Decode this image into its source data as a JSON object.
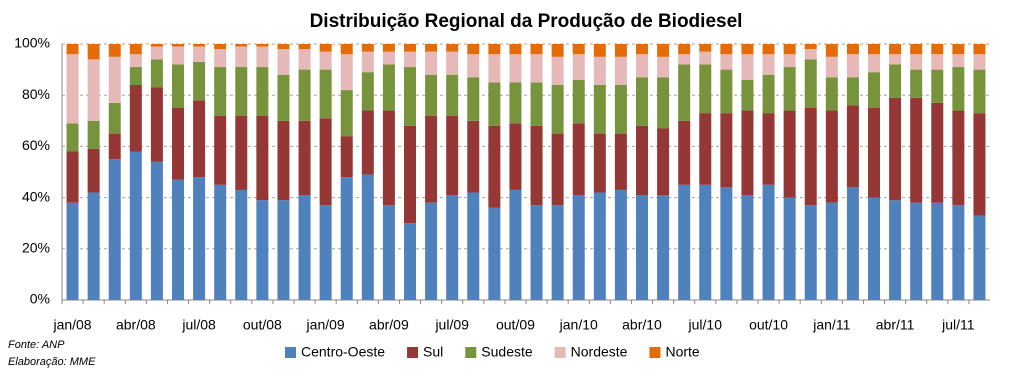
{
  "chart_data": {
    "type": "stacked_bar",
    "title": "Distribuição Regional da Produção de Biodiesel",
    "categories": [
      "jan/08",
      null,
      null,
      "abr/08",
      null,
      null,
      "jul/08",
      null,
      null,
      "out/08",
      null,
      null,
      "jan/09",
      null,
      null,
      "abr/09",
      null,
      null,
      "jul/09",
      null,
      null,
      "out/09",
      null,
      null,
      "jan/10",
      null,
      null,
      "abr/10",
      null,
      null,
      "jul/10",
      null,
      null,
      "out/10",
      null,
      null,
      "jan/11",
      null,
      null,
      "abr/11",
      null,
      null,
      "jul/11",
      null
    ],
    "series": [
      {
        "name": "Centro-Oeste",
        "color": "#4f81bd",
        "values": [
          38,
          42,
          55,
          58,
          54,
          47,
          48,
          45,
          43,
          39,
          39,
          41,
          37,
          48,
          49,
          37,
          30,
          38,
          41,
          42,
          36,
          43,
          37,
          37,
          41,
          42,
          43,
          41,
          41,
          45,
          45,
          44,
          41,
          45,
          40,
          37,
          38,
          44,
          40,
          39,
          38,
          38,
          37,
          33
        ]
      },
      {
        "name": "Sul",
        "color": "#953735",
        "values": [
          20,
          17,
          10,
          26,
          29,
          28,
          30,
          27,
          29,
          33,
          31,
          29,
          34,
          16,
          25,
          37,
          38,
          34,
          31,
          28,
          32,
          26,
          31,
          28,
          28,
          23,
          22,
          27,
          26,
          25,
          28,
          29,
          33,
          28,
          34,
          38,
          36,
          32,
          35,
          40,
          41,
          39,
          37,
          40
        ]
      },
      {
        "name": "Sudeste",
        "color": "#77933c",
        "values": [
          11,
          11,
          12,
          7,
          11,
          17,
          15,
          19,
          19,
          19,
          18,
          20,
          19,
          18,
          15,
          18,
          23,
          16,
          16,
          17,
          17,
          16,
          17,
          19,
          17,
          19,
          19,
          19,
          20,
          22,
          19,
          17,
          12,
          15,
          17,
          19,
          13,
          11,
          14,
          13,
          11,
          13,
          17,
          17
        ]
      },
      {
        "name": "Nordeste",
        "color": "#e6b9b8",
        "values": [
          27,
          24,
          18,
          5,
          5,
          7,
          6,
          7,
          8,
          8,
          10,
          8,
          7,
          14,
          8,
          5,
          6,
          9,
          9,
          9,
          11,
          11,
          11,
          11,
          10,
          11,
          11,
          9,
          8,
          4,
          5,
          6,
          10,
          8,
          5,
          4,
          8,
          9,
          7,
          4,
          6,
          6,
          5,
          6
        ]
      },
      {
        "name": "Norte",
        "color": "#e36c09",
        "values": [
          4,
          6,
          5,
          4,
          1,
          1,
          1,
          2,
          1,
          1,
          2,
          2,
          3,
          4,
          3,
          3,
          3,
          3,
          3,
          4,
          4,
          4,
          4,
          5,
          4,
          5,
          5,
          4,
          5,
          4,
          3,
          4,
          4,
          4,
          4,
          2,
          5,
          4,
          4,
          4,
          4,
          4,
          4,
          4
        ]
      }
    ],
    "ylim": [
      0,
      100
    ],
    "yticks": [
      {
        "value": 0,
        "label": "0%"
      },
      {
        "value": 20,
        "label": "20%"
      },
      {
        "value": 40,
        "label": "40%"
      },
      {
        "value": 60,
        "label": "60%"
      },
      {
        "value": 80,
        "label": "80%"
      },
      {
        "value": 100,
        "label": "100%"
      }
    ],
    "grid": true,
    "legend": "bottom"
  },
  "notes": {
    "source": "Fonte: ANP",
    "elaboration": "Elaboração: MME"
  }
}
